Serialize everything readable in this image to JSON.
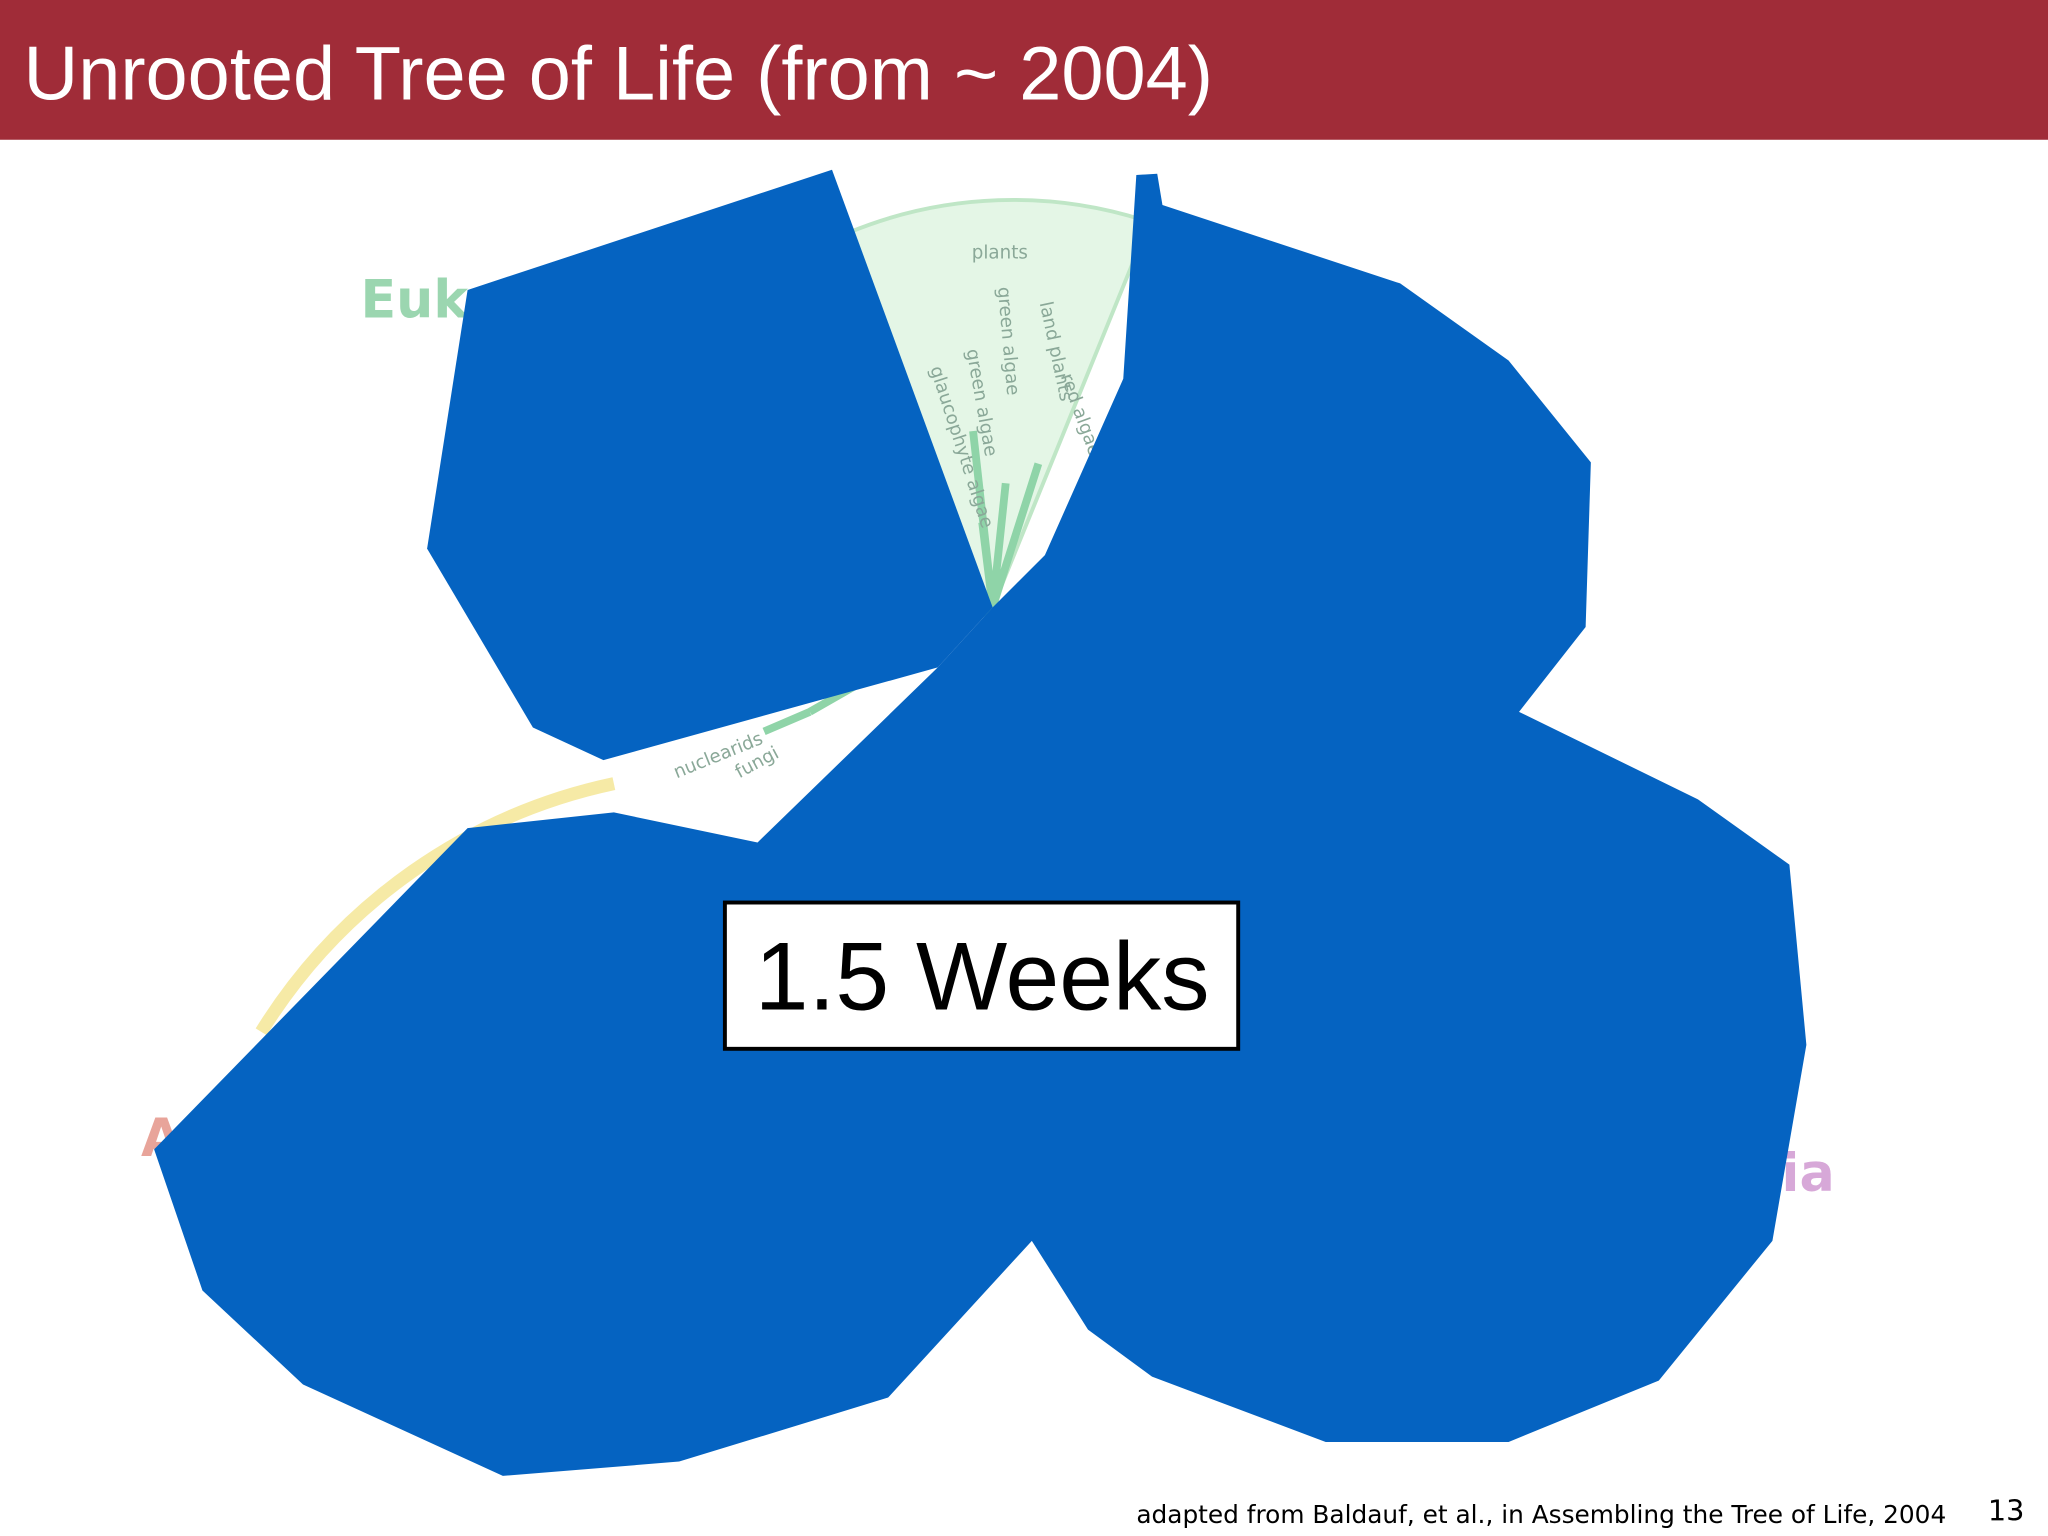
{
  "header": {
    "title": "Unrooted Tree of Life (from ~ 2004)"
  },
  "figure": {
    "domain_labels": [
      "Euk",
      "A",
      "ia"
    ],
    "branch_labels": [
      "plants",
      "green algae",
      "land plants",
      "red algae",
      "green algae",
      "glaucophyte algae",
      "nuclearids",
      "fungi"
    ],
    "overlay_label": "1.5 Weeks"
  },
  "footer": {
    "citation": "adapted from Baldauf, et al., in Assembling the Tree of Life, 2004",
    "page_number": "13"
  }
}
